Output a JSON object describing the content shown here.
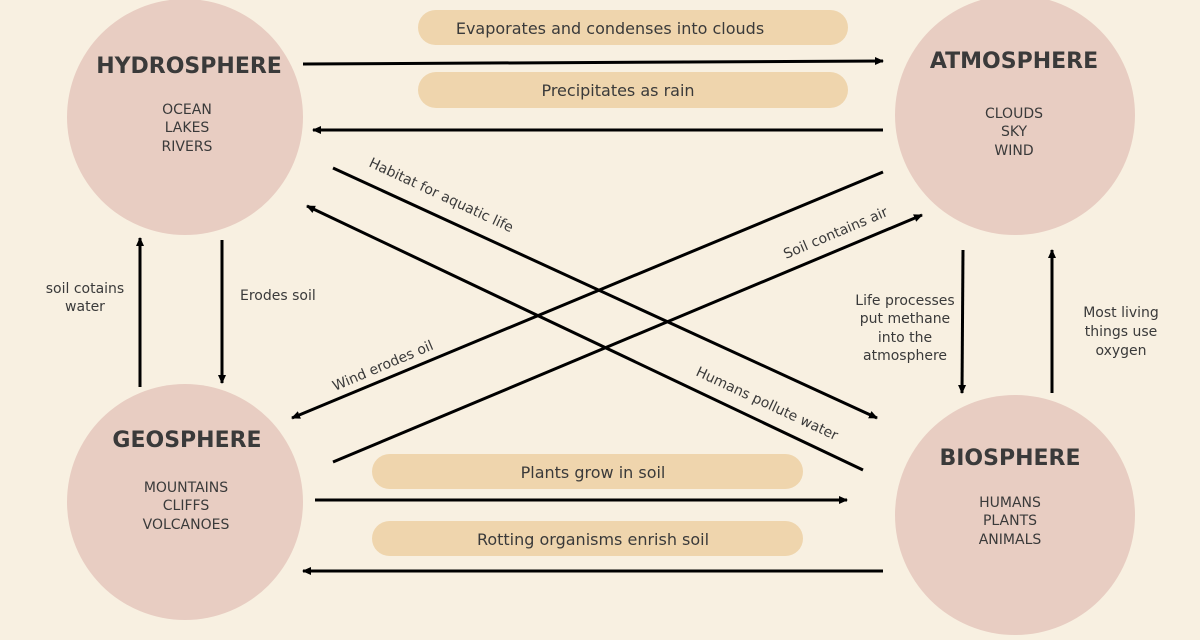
{
  "colors": {
    "background": "#f8f0e1",
    "sphere": "#e8cdc2",
    "pill": "#efd5ad",
    "arrow": "#000000"
  },
  "spheres": {
    "hydrosphere": {
      "title": "HYDROSPHERE",
      "items": [
        "OCEAN",
        "LAKES",
        "RIVERS"
      ]
    },
    "atmosphere": {
      "title": "ATMOSPHERE",
      "items": [
        "CLOUDS",
        "SKY",
        "WIND"
      ]
    },
    "geosphere": {
      "title": "GEOSPHERE",
      "items": [
        "MOUNTAINS",
        "CLIFFS",
        "VOLCANOES"
      ]
    },
    "biosphere": {
      "title": "BIOSPHERE",
      "items": [
        "HUMANS",
        "PLANTS",
        "ANIMALS"
      ]
    }
  },
  "pills": [
    "Evaporates and condenses into clouds",
    "Precipitates as rain",
    "Plants grow in soil",
    "Rotting organisms enrish soil"
  ],
  "labels": {
    "habitat": "Habitat for aquatic life",
    "humans_pollute": "Humans pollute water",
    "wind_erodes": "Wind erodes oil",
    "soil_air": "Soil contains air",
    "soil_water": [
      "soil cotains",
      "water"
    ],
    "erodes_soil": "Erodes soil",
    "life_processes": [
      "Life processes",
      "put methane",
      "into the",
      "atmosphere"
    ],
    "most_living": [
      "Most living",
      "things use",
      "oxygen"
    ]
  }
}
